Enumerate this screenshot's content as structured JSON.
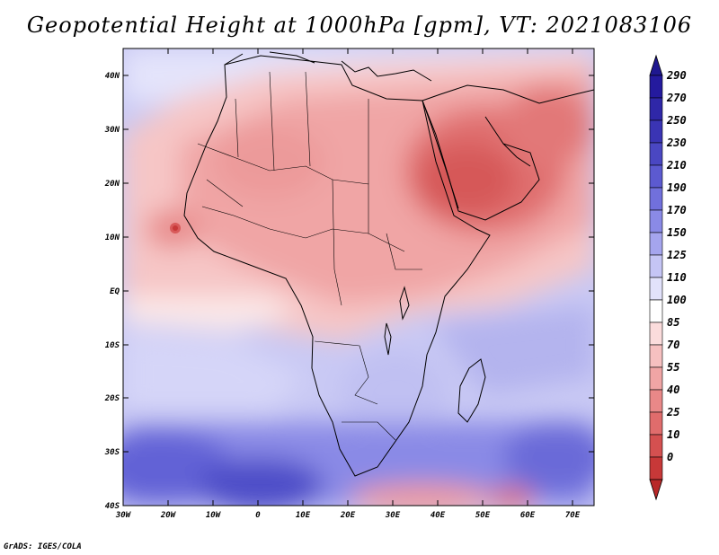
{
  "title": "Geopotential Height at 1000hPa [gpm], VT: 2021083106",
  "footer": "GrADS: IGES/COLA",
  "map": {
    "lat_labels": [
      "40N",
      "30N",
      "20N",
      "10N",
      "EQ",
      "10S",
      "20S",
      "30S",
      "40S"
    ],
    "lon_labels": [
      "30W",
      "20W",
      "10W",
      "0",
      "10E",
      "20E",
      "30E",
      "40E",
      "50E",
      "60E",
      "70E"
    ]
  },
  "colorbar": {
    "levels": [
      {
        "label": "290",
        "color": "#241a9e"
      },
      {
        "label": "270",
        "color": "#2f27a8"
      },
      {
        "label": "250",
        "color": "#3a34b4"
      },
      {
        "label": "230",
        "color": "#4a47c2"
      },
      {
        "label": "210",
        "color": "#5c5ad0"
      },
      {
        "label": "190",
        "color": "#7170dc"
      },
      {
        "label": "170",
        "color": "#8a8ae6"
      },
      {
        "label": "150",
        "color": "#a5a5ee"
      },
      {
        "label": "125",
        "color": "#c5c5f5"
      },
      {
        "label": "110",
        "color": "#e2e2fb"
      },
      {
        "label": "100",
        "color": "#ffffff"
      },
      {
        "label": "85",
        "color": "#fbdcdc"
      },
      {
        "label": "70",
        "color": "#f6c0c0"
      },
      {
        "label": "55",
        "color": "#f0a5a5"
      },
      {
        "label": "40",
        "color": "#e98888"
      },
      {
        "label": "25",
        "color": "#e06c6c"
      },
      {
        "label": "10",
        "color": "#d45050"
      },
      {
        "label": "0",
        "color": "#c73838"
      }
    ],
    "top_triangle_color": "#1f1890",
    "bottom_triangle_color": "#b82828"
  }
}
